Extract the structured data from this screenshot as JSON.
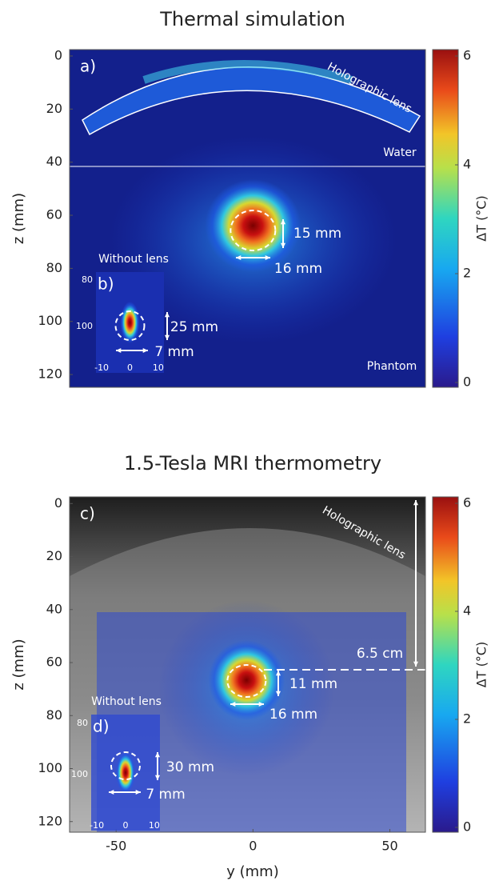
{
  "chart_data": [
    {
      "type": "heatmap",
      "title": "Thermal simulation",
      "panel": "a)",
      "ylabel": "z (mm)",
      "xlim": [
        -67,
        63
      ],
      "ylim": [
        -2.4,
        124.8
      ],
      "yticks": [
        0,
        20,
        40,
        60,
        80,
        100,
        120
      ],
      "colorbar": {
        "label": "ΔT (°C)",
        "lim": [
          0,
          6
        ],
        "ticks": [
          0,
          2,
          4,
          6
        ]
      },
      "annotations": [
        "Holographic lens",
        "Water",
        "Phantom",
        "15 mm",
        "16 mm",
        "Without lens",
        "25 mm",
        "7 mm"
      ],
      "inset": {
        "panel": "b)",
        "xlim": [
          -12,
          12
        ],
        "ylim": [
          76.5,
          120
        ],
        "xticks": [
          -10,
          0,
          10
        ],
        "yticks": [
          80,
          100
        ]
      }
    },
    {
      "type": "heatmap",
      "title": "1.5-Tesla MRI thermometry",
      "panel": "c)",
      "ylabel": "z (mm)",
      "xlabel": "y (mm)",
      "xlim": [
        -67,
        63
      ],
      "ylim": [
        -2.5,
        124
      ],
      "xticks": [
        -50,
        0,
        50
      ],
      "yticks": [
        0,
        20,
        40,
        60,
        80,
        100,
        120
      ],
      "colorbar": {
        "label": "ΔT (°C)",
        "lim": [
          0,
          6
        ],
        "ticks": [
          0,
          2,
          4,
          6
        ]
      },
      "annotations": [
        "Holographic lens",
        "6.5 cm",
        "11 mm",
        "16 mm",
        "Without lens",
        "30 mm",
        "7 mm"
      ],
      "inset": {
        "panel": "d)",
        "xlim": [
          -12,
          12
        ],
        "ylim": [
          76.5,
          122
        ],
        "xticks": [
          -10,
          0,
          10
        ],
        "yticks": [
          80,
          100
        ]
      }
    }
  ]
}
